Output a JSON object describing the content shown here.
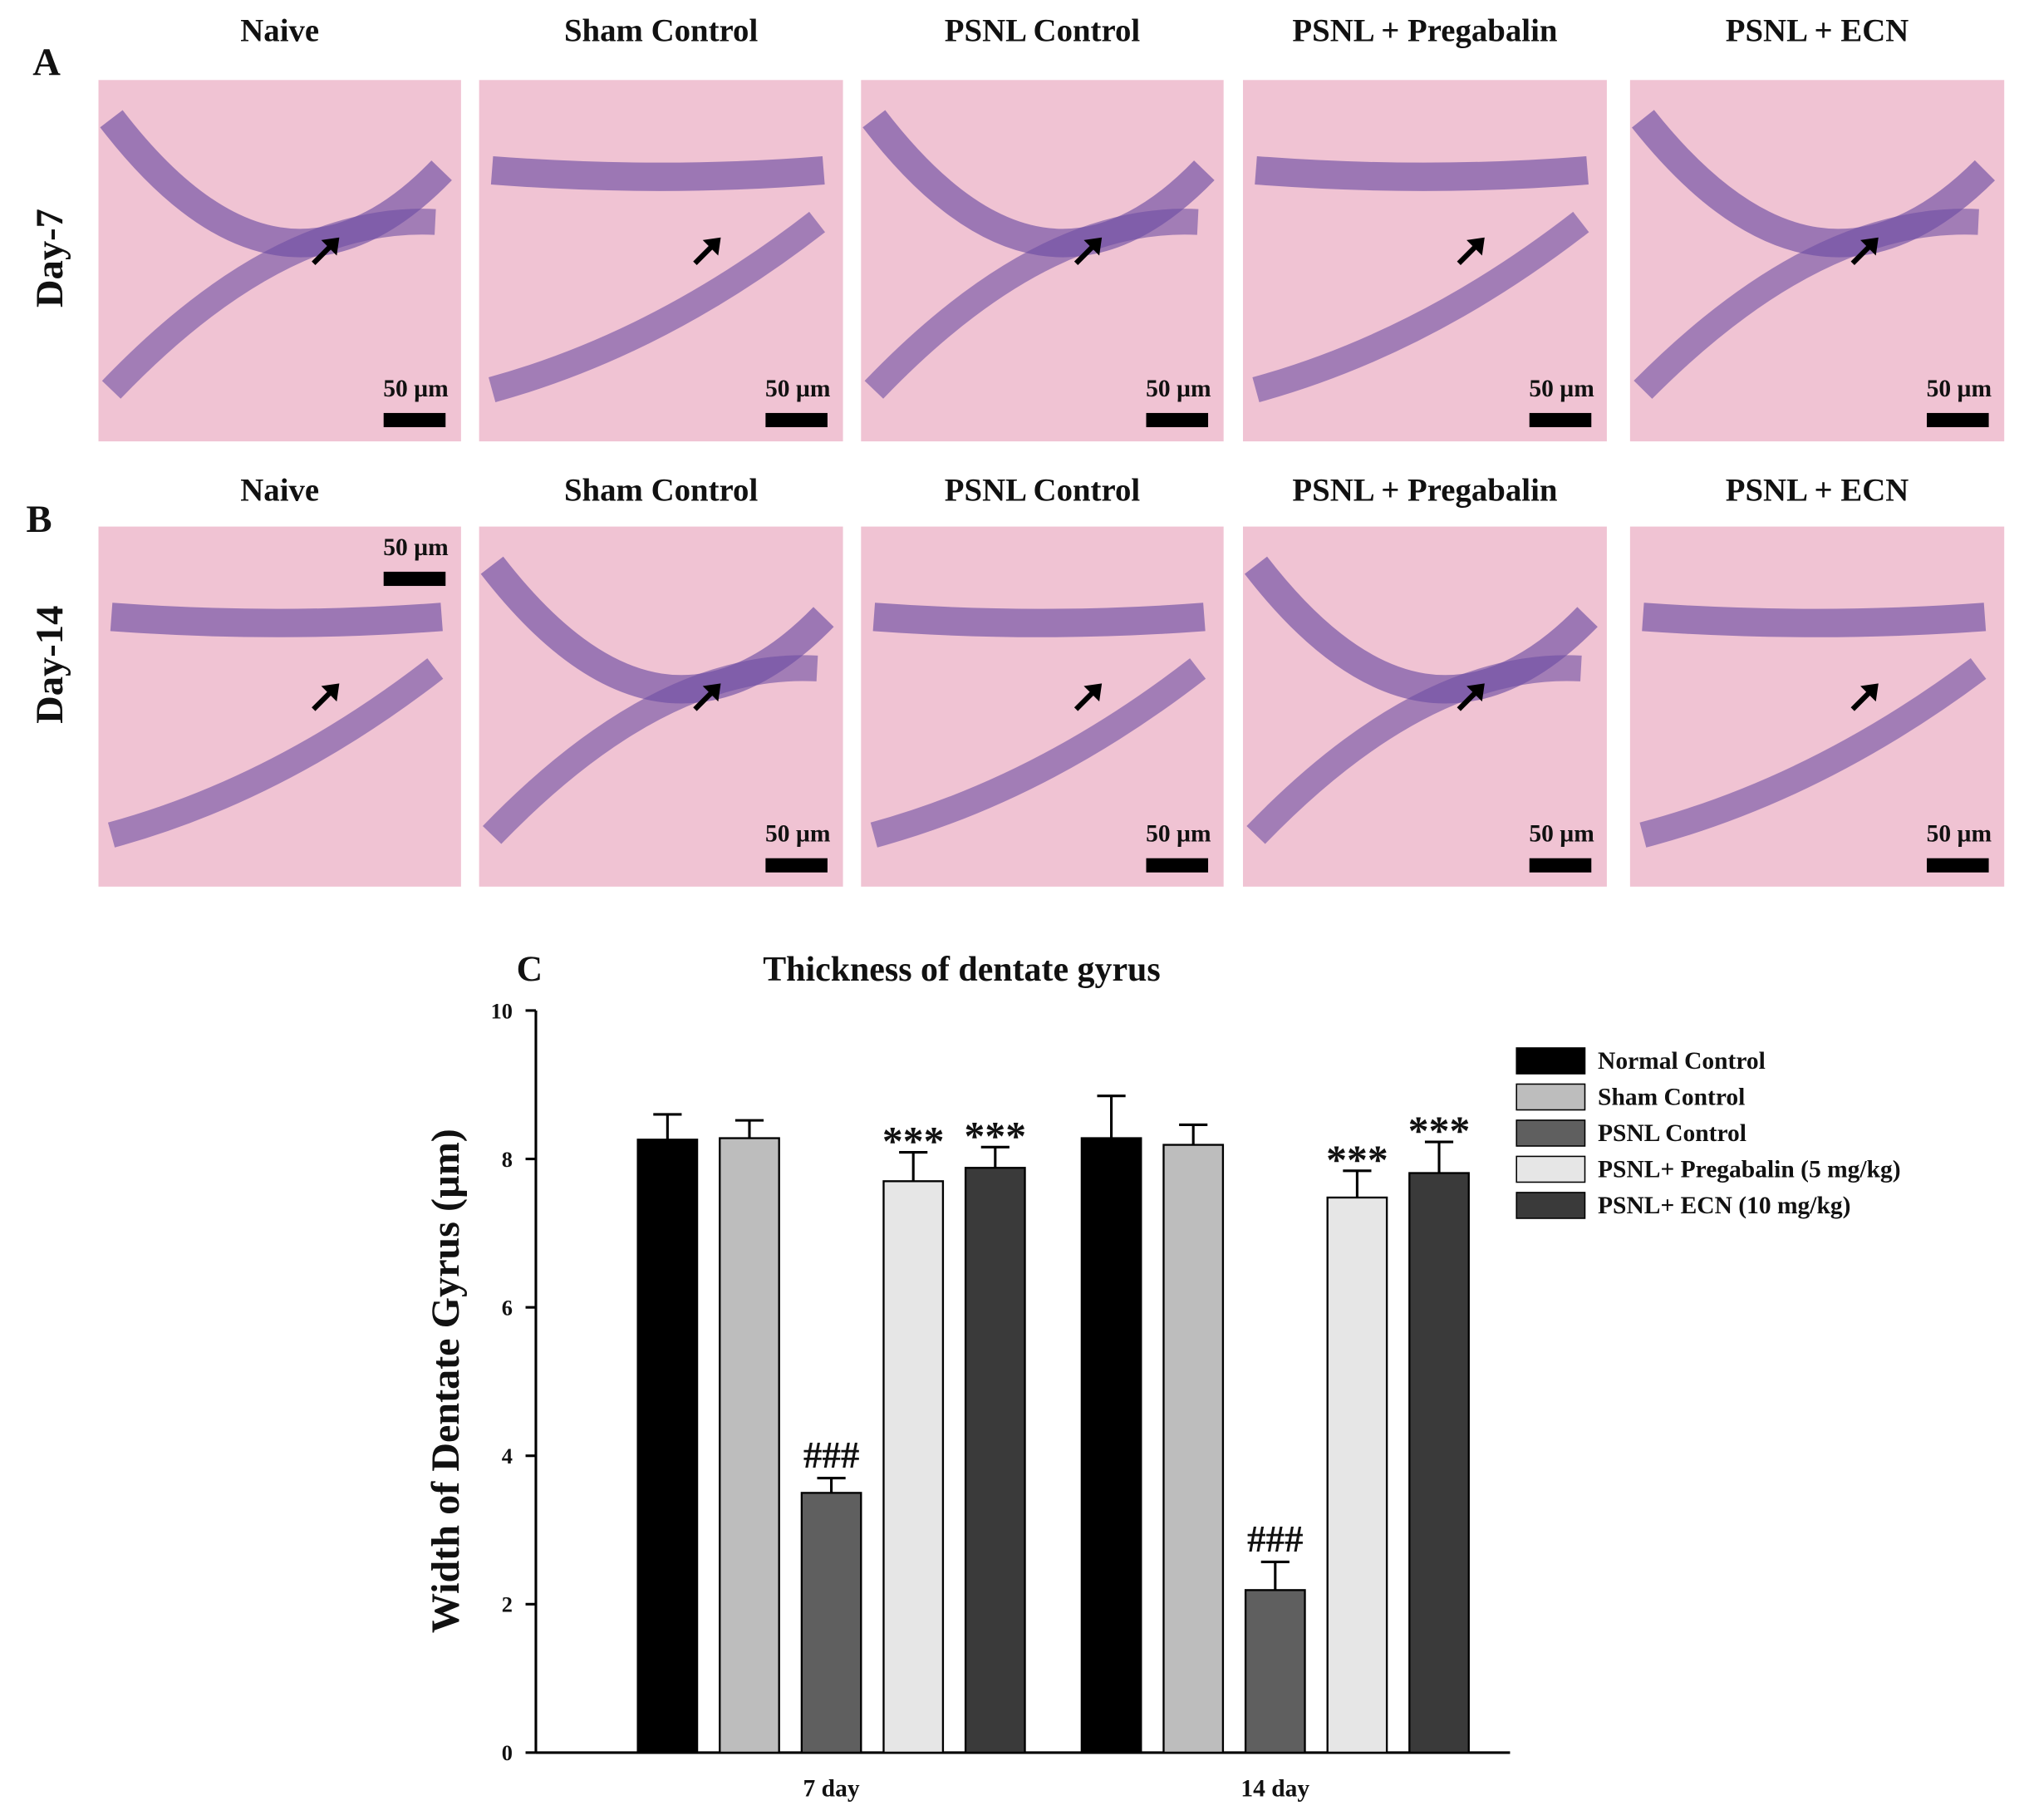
{
  "figure": {
    "panel_labels": [
      "A",
      "B",
      "C"
    ],
    "rows": [
      {
        "label": "Day-7",
        "panels": [
          {
            "title": "Naive",
            "scale": "50 µm"
          },
          {
            "title": "Sham Control",
            "scale": "50 µm"
          },
          {
            "title": "PSNL Control",
            "scale": "50 µm"
          },
          {
            "title": "PSNL + Pregabalin",
            "scale": "50 µm"
          },
          {
            "title": "PSNL + ECN",
            "scale": "50 µm"
          }
        ]
      },
      {
        "label": "Day-14",
        "panels": [
          {
            "title": "Naive",
            "scale": "50 µm"
          },
          {
            "title": "Sham Control",
            "scale": "50 µm"
          },
          {
            "title": "PSNL Control",
            "scale": "50 µm"
          },
          {
            "title": "PSNL + Pregabalin",
            "scale": "50 µm"
          },
          {
            "title": "PSNL + ECN",
            "scale": "50 µm"
          }
        ]
      }
    ]
  },
  "chart_data": {
    "type": "bar",
    "title": "Thickness of dentate gyrus",
    "ylabel": "Width of Dentate Gyrus (µm)",
    "categories": [
      "7 day",
      "14 day"
    ],
    "ylim": [
      0,
      10
    ],
    "yticks": [
      0,
      2,
      4,
      6,
      8,
      10
    ],
    "grid": false,
    "legend": "upper right",
    "series": [
      {
        "name": "Normal Control",
        "color": "#000000",
        "values": [
          8.26,
          8.28
        ],
        "errors": [
          0.34,
          0.57
        ]
      },
      {
        "name": "Sham Control",
        "color": "#bdbdbd",
        "values": [
          8.28,
          8.19
        ],
        "errors": [
          0.24,
          0.27
        ]
      },
      {
        "name": "PSNL Control",
        "color": "#5f5f5f",
        "values": [
          3.5,
          2.19
        ],
        "errors": [
          0.2,
          0.38
        ],
        "annotations": [
          "###",
          "###"
        ]
      },
      {
        "name": "PSNL+ Pregabalin (5 mg/kg)",
        "color": "#e6e6e6",
        "values": [
          7.7,
          7.48
        ],
        "errors": [
          0.39,
          0.36
        ],
        "annotations": [
          "***",
          "***"
        ]
      },
      {
        "name": "PSNL+ ECN (10 mg/kg)",
        "color": "#3a3a3a",
        "values": [
          7.88,
          7.81
        ],
        "errors": [
          0.28,
          0.42
        ],
        "annotations": [
          "***",
          "***"
        ]
      }
    ]
  }
}
